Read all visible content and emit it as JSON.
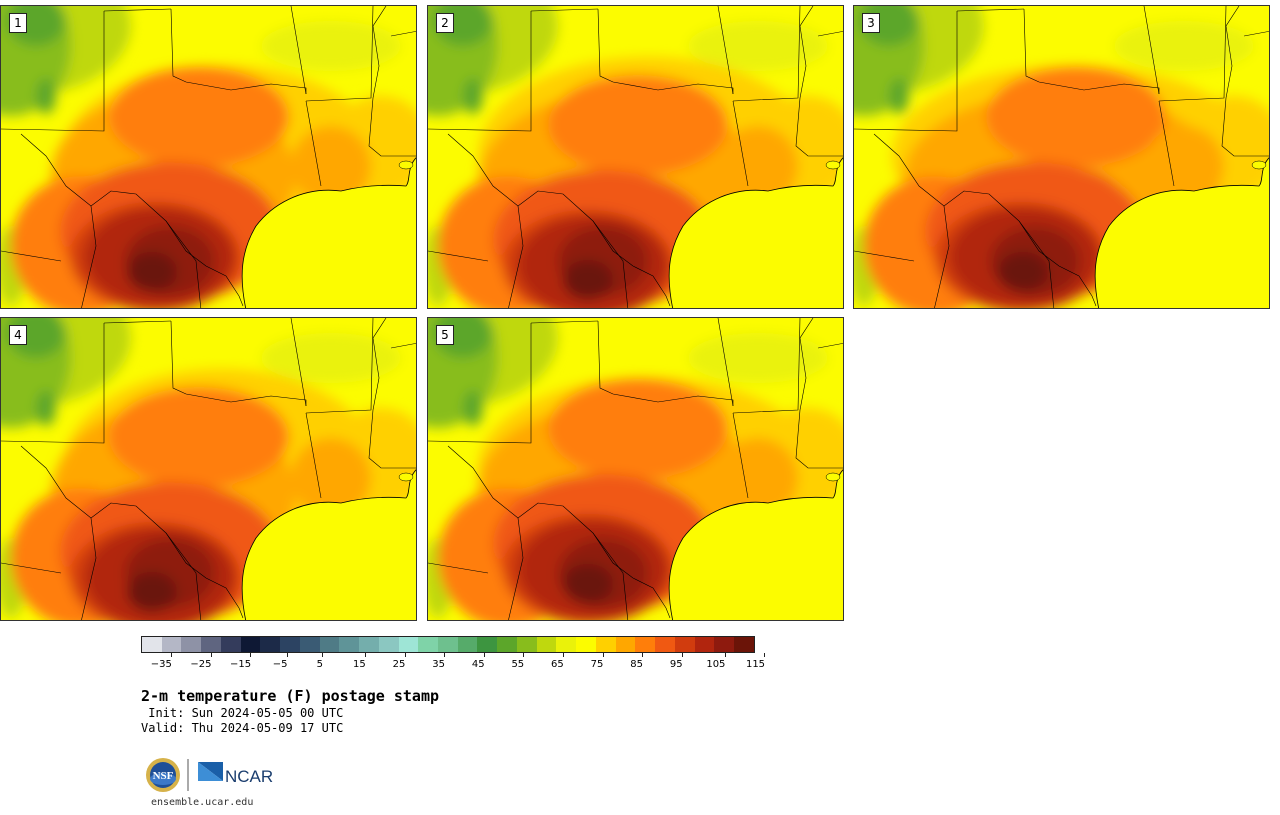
{
  "stamps": [
    {
      "label": "1",
      "variant": 0
    },
    {
      "label": "2",
      "variant": 1
    },
    {
      "label": "3",
      "variant": 2
    },
    {
      "label": "4",
      "variant": 3
    },
    {
      "label": "5",
      "variant": 4
    }
  ],
  "colorbar": {
    "colors": [
      "#e2e4ea",
      "#b4b7c6",
      "#8e92a6",
      "#5f6580",
      "#343c5c",
      "#0e1834",
      "#1c2a48",
      "#2c4362",
      "#3a5b74",
      "#4f7b86",
      "#5f9498",
      "#74aeac",
      "#8bc7c1",
      "#9ee5d6",
      "#7fd3a8",
      "#6ec08e",
      "#56ab6a",
      "#3d9540",
      "#5ca62a",
      "#88bd1c",
      "#bfd80e",
      "#eaf20a",
      "#fcfc00",
      "#ffd000",
      "#ffa700",
      "#ff7e0a",
      "#f05912",
      "#d13c0e",
      "#b1250e",
      "#8e1a0e",
      "#6b1408"
    ],
    "tick_labels": [
      "−35",
      "−25",
      "−15",
      "−5",
      "5",
      "15",
      "25",
      "35",
      "45",
      "55",
      "65",
      "75",
      "85",
      "95",
      "105",
      "115"
    ],
    "min": -40,
    "max": 115
  },
  "title": "2-m temperature (F) postage stamp",
  "init": " Init: Sun 2024-05-05 00 UTC",
  "valid": "Valid: Thu 2024-05-09 17 UTC",
  "logos": {
    "left": "NSF",
    "right": "NCAR"
  },
  "site": "ensemble.ucar.edu"
}
